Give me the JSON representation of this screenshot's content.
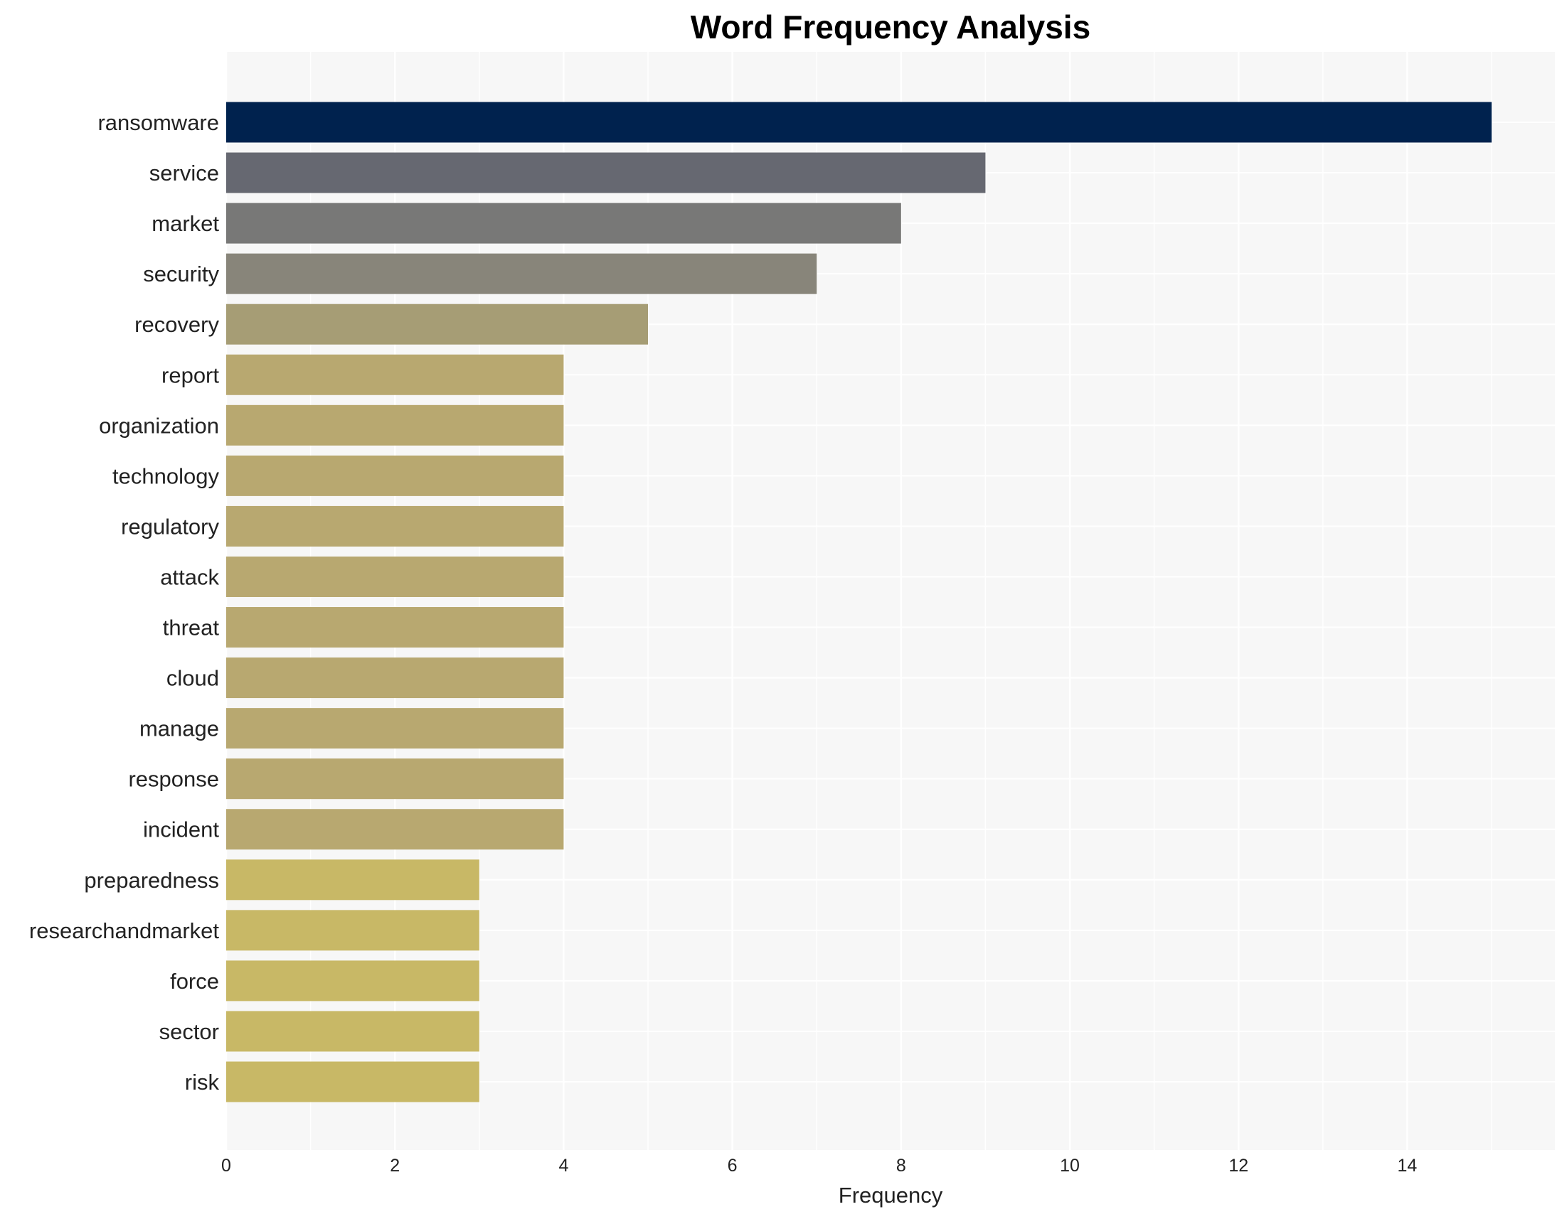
{
  "chart_data": {
    "type": "bar",
    "orientation": "horizontal",
    "title": "Word Frequency Analysis",
    "xlabel": "Frequency",
    "ylabel": "",
    "xlim": [
      0,
      15.75
    ],
    "xticks": [
      0,
      2,
      4,
      6,
      8,
      10,
      12,
      14
    ],
    "grid": true,
    "categories": [
      "ransomware",
      "service",
      "market",
      "security",
      "recovery",
      "report",
      "organization",
      "technology",
      "regulatory",
      "attack",
      "threat",
      "cloud",
      "manage",
      "response",
      "incident",
      "preparedness",
      "researchandmarket",
      "force",
      "sector",
      "risk"
    ],
    "values": [
      15,
      9,
      8,
      7,
      5,
      4,
      4,
      4,
      4,
      4,
      4,
      4,
      4,
      4,
      4,
      3,
      3,
      3,
      3,
      3
    ],
    "colors": [
      "#00224e",
      "#666871",
      "#787877",
      "#88857a",
      "#a69d75",
      "#b8a870",
      "#b8a870",
      "#b8a870",
      "#b8a870",
      "#b8a870",
      "#b8a870",
      "#b8a870",
      "#b8a870",
      "#b8a870",
      "#b8a870",
      "#c8b866",
      "#c8b866",
      "#c8b866",
      "#c8b866",
      "#c8b866"
    ],
    "background": "#f7f7f7"
  }
}
